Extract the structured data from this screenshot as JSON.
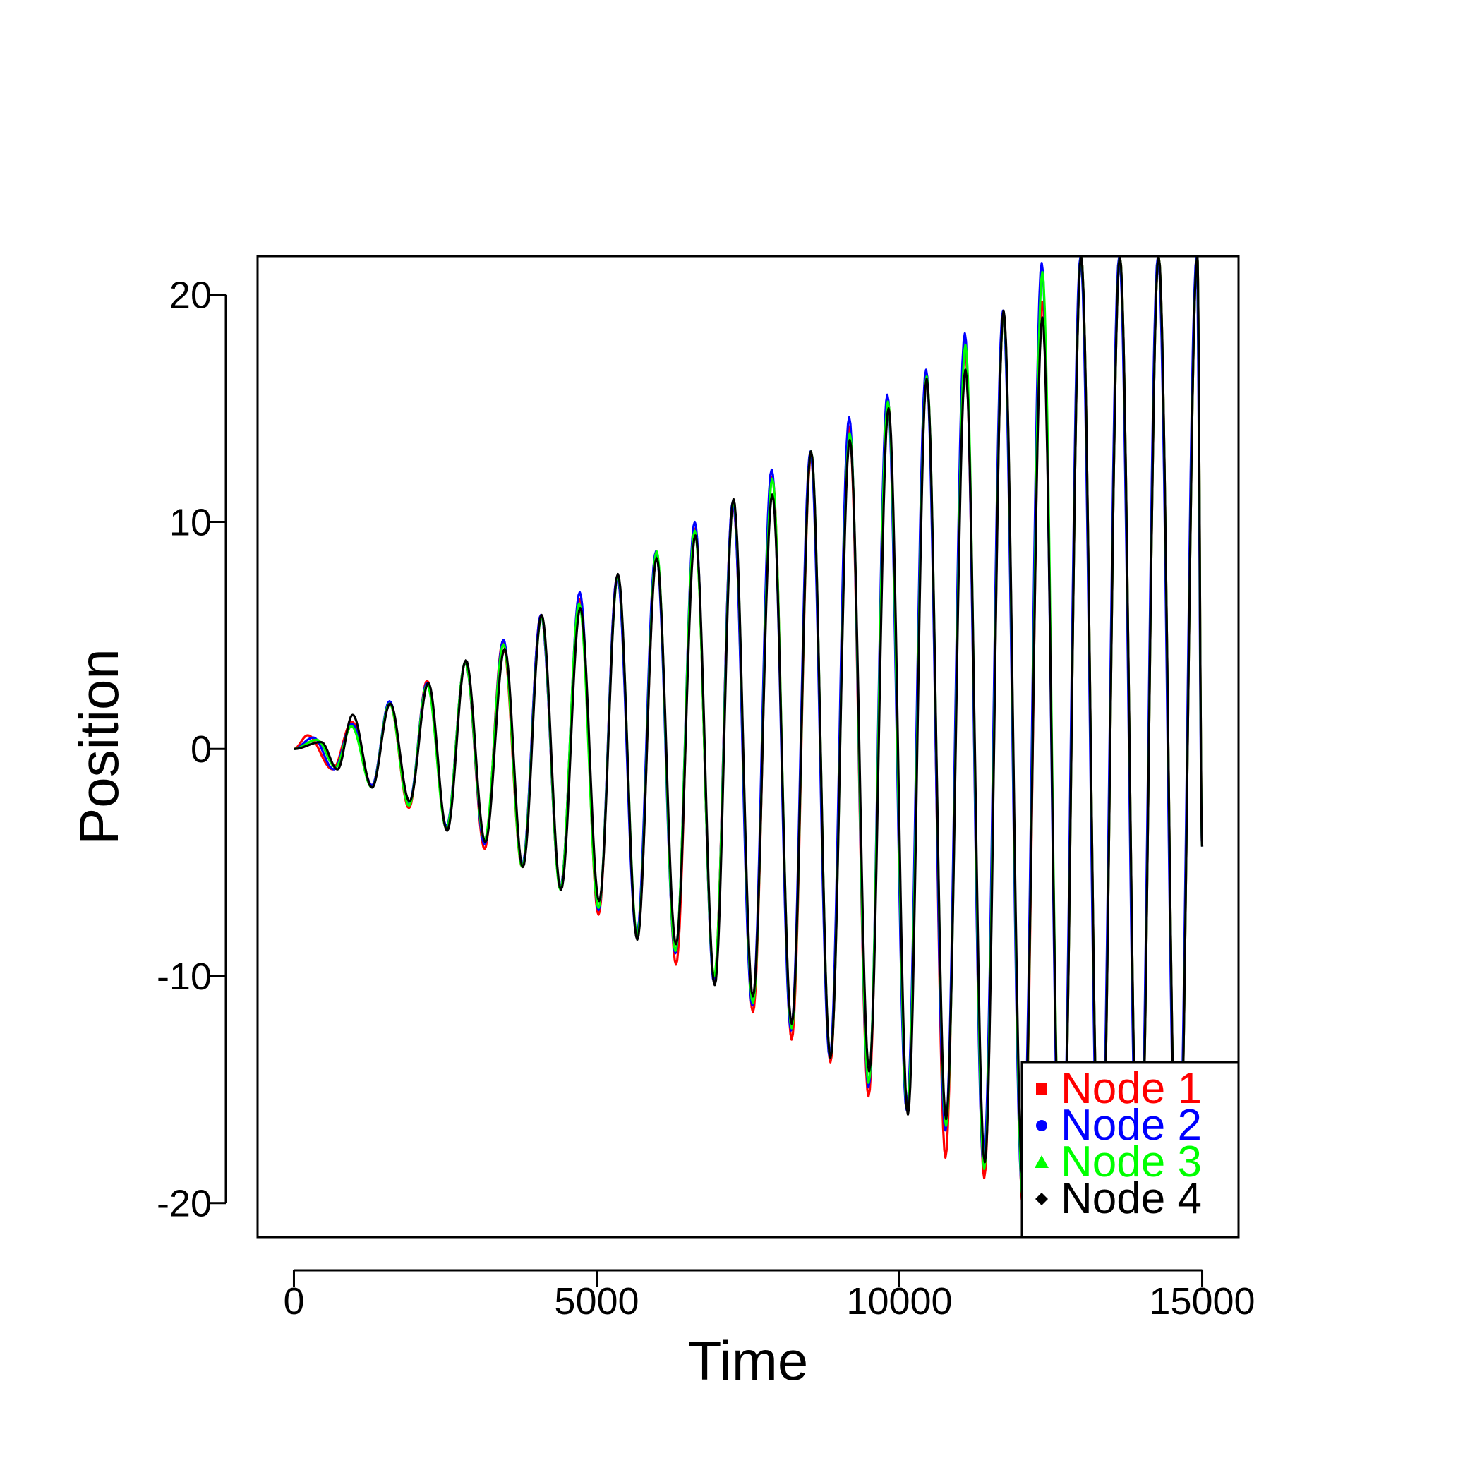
{
  "chart_data": {
    "type": "line",
    "xlabel": "Time",
    "ylabel": "Position",
    "xlim": [
      -600,
      15600
    ],
    "ylim": [
      -21.5,
      21.7
    ],
    "x_ticks": [
      0,
      5000,
      10000,
      15000
    ],
    "x_tick_labels": [
      "0",
      "5000",
      "10000",
      "15000"
    ],
    "y_ticks": [
      -20,
      -10,
      0,
      10,
      20
    ],
    "y_tick_labels": [
      "-20",
      "-10",
      "0",
      "10",
      "20"
    ],
    "grid": false,
    "legend_position": "bottom-right",
    "series": [
      {
        "name": "Node 1",
        "color": "#ff0000",
        "marker": "square",
        "extrema": [
          [
            0,
            0
          ],
          [
            230,
            0.6
          ],
          [
            640,
            -0.9
          ],
          [
            960,
            1.2
          ],
          [
            1290,
            -1.6
          ],
          [
            1580,
            2.0
          ],
          [
            1900,
            -2.6
          ],
          [
            2200,
            3.0
          ],
          [
            2520,
            -3.5
          ],
          [
            2830,
            3.8
          ],
          [
            3150,
            -4.4
          ],
          [
            3450,
            4.7
          ],
          [
            3770,
            -5.2
          ],
          [
            4080,
            5.9
          ],
          [
            4400,
            -6.1
          ],
          [
            4720,
            6.6
          ],
          [
            5030,
            -7.3
          ],
          [
            5340,
            7.6
          ],
          [
            5670,
            -8.3
          ],
          [
            5990,
            8.5
          ],
          [
            6310,
            -9.5
          ],
          [
            6620,
            9.7
          ],
          [
            6940,
            -10.1
          ],
          [
            7250,
            10.8
          ],
          [
            7580,
            -11.6
          ],
          [
            7900,
            12.0
          ],
          [
            8220,
            -12.8
          ],
          [
            8540,
            12.9
          ],
          [
            8860,
            -13.8
          ],
          [
            9170,
            14.2
          ],
          [
            9490,
            -15.3
          ],
          [
            9810,
            15.3
          ],
          [
            10130,
            -15.9
          ],
          [
            10450,
            16.4
          ],
          [
            10760,
            -18.0
          ],
          [
            11080,
            17.8
          ],
          [
            11400,
            -18.9
          ],
          [
            11720,
            19.2
          ],
          [
            12040,
            -20.2
          ],
          [
            12360,
            19.7
          ],
          [
            12680,
            -21.5
          ],
          [
            13000,
            21.7
          ],
          [
            13320,
            -21.5
          ],
          [
            13640,
            21.7
          ],
          [
            13960,
            -21.5
          ],
          [
            14280,
            21.7
          ],
          [
            14600,
            -21.5
          ],
          [
            14920,
            21.7
          ],
          [
            15000,
            -4.3
          ]
        ]
      },
      {
        "name": "Node 2",
        "color": "#0000ff",
        "marker": "circle",
        "extrema": [
          [
            0,
            0
          ],
          [
            320,
            0.5
          ],
          [
            660,
            -0.9
          ],
          [
            960,
            1.1
          ],
          [
            1290,
            -1.6
          ],
          [
            1580,
            2.1
          ],
          [
            1900,
            -2.4
          ],
          [
            2200,
            2.9
          ],
          [
            2520,
            -3.4
          ],
          [
            2830,
            3.8
          ],
          [
            3150,
            -4.2
          ],
          [
            3460,
            4.8
          ],
          [
            3770,
            -5.1
          ],
          [
            4080,
            5.9
          ],
          [
            4400,
            -6.1
          ],
          [
            4720,
            6.9
          ],
          [
            5030,
            -7.1
          ],
          [
            5340,
            7.6
          ],
          [
            5660,
            -8.2
          ],
          [
            5980,
            8.7
          ],
          [
            6300,
            -9.0
          ],
          [
            6620,
            10.0
          ],
          [
            6940,
            -10.3
          ],
          [
            7250,
            10.9
          ],
          [
            7570,
            -11.3
          ],
          [
            7890,
            12.3
          ],
          [
            8210,
            -12.4
          ],
          [
            8530,
            13.1
          ],
          [
            8850,
            -13.6
          ],
          [
            9170,
            14.6
          ],
          [
            9490,
            -14.9
          ],
          [
            9800,
            15.6
          ],
          [
            10120,
            -15.9
          ],
          [
            10440,
            16.7
          ],
          [
            10760,
            -16.8
          ],
          [
            11080,
            18.3
          ],
          [
            11390,
            -18.3
          ],
          [
            11710,
            19.3
          ],
          [
            12030,
            -19.6
          ],
          [
            12350,
            21.4
          ],
          [
            12670,
            -21.5
          ],
          [
            12990,
            21.7
          ],
          [
            13310,
            -21.5
          ],
          [
            13630,
            21.7
          ],
          [
            13950,
            -21.5
          ],
          [
            14270,
            21.7
          ],
          [
            14590,
            -21.5
          ],
          [
            14910,
            21.7
          ],
          [
            15000,
            -4.3
          ]
        ]
      },
      {
        "name": "Node 3",
        "color": "#00ff00",
        "marker": "triangle",
        "extrema": [
          [
            0,
            0
          ],
          [
            380,
            0.4
          ],
          [
            690,
            -0.8
          ],
          [
            950,
            1.0
          ],
          [
            1290,
            -1.7
          ],
          [
            1580,
            2.0
          ],
          [
            1900,
            -2.5
          ],
          [
            2200,
            2.8
          ],
          [
            2520,
            -3.5
          ],
          [
            2830,
            3.8
          ],
          [
            3150,
            -4.0
          ],
          [
            3460,
            4.6
          ],
          [
            3770,
            -5.2
          ],
          [
            4090,
            5.8
          ],
          [
            4400,
            -6.2
          ],
          [
            4710,
            6.4
          ],
          [
            5030,
            -7.0
          ],
          [
            5350,
            7.6
          ],
          [
            5670,
            -8.2
          ],
          [
            5990,
            8.7
          ],
          [
            6300,
            -8.9
          ],
          [
            6620,
            9.6
          ],
          [
            6940,
            -10.0
          ],
          [
            7260,
            10.9
          ],
          [
            7580,
            -11.2
          ],
          [
            7900,
            11.9
          ],
          [
            8220,
            -12.3
          ],
          [
            8540,
            13.1
          ],
          [
            8860,
            -13.6
          ],
          [
            9180,
            13.9
          ],
          [
            9490,
            -14.7
          ],
          [
            9810,
            15.3
          ],
          [
            10130,
            -15.9
          ],
          [
            10450,
            16.4
          ],
          [
            10770,
            -16.6
          ],
          [
            11090,
            17.8
          ],
          [
            11400,
            -18.5
          ],
          [
            11720,
            19.2
          ],
          [
            12040,
            -19.9
          ],
          [
            12360,
            21.0
          ],
          [
            12680,
            -21.5
          ],
          [
            13000,
            21.7
          ],
          [
            13320,
            -21.5
          ],
          [
            13640,
            21.7
          ],
          [
            13960,
            -21.5
          ],
          [
            14280,
            21.7
          ],
          [
            14600,
            -21.5
          ],
          [
            14920,
            21.7
          ],
          [
            15000,
            -4.3
          ]
        ]
      },
      {
        "name": "Node 4",
        "color": "#000000",
        "marker": "diamond",
        "extrema": [
          [
            0,
            0
          ],
          [
            450,
            0.3
          ],
          [
            720,
            -0.9
          ],
          [
            970,
            1.5
          ],
          [
            1290,
            -1.7
          ],
          [
            1590,
            2.0
          ],
          [
            1910,
            -2.3
          ],
          [
            2220,
            2.9
          ],
          [
            2530,
            -3.6
          ],
          [
            2840,
            3.9
          ],
          [
            3160,
            -4.1
          ],
          [
            3480,
            4.4
          ],
          [
            3780,
            -5.2
          ],
          [
            4090,
            5.9
          ],
          [
            4410,
            -6.2
          ],
          [
            4730,
            6.2
          ],
          [
            5040,
            -6.7
          ],
          [
            5350,
            7.7
          ],
          [
            5670,
            -8.4
          ],
          [
            5990,
            8.4
          ],
          [
            6310,
            -8.6
          ],
          [
            6630,
            9.4
          ],
          [
            6950,
            -10.4
          ],
          [
            7260,
            11.0
          ],
          [
            7580,
            -10.9
          ],
          [
            7900,
            11.2
          ],
          [
            8220,
            -12.1
          ],
          [
            8540,
            13.1
          ],
          [
            8860,
            -13.6
          ],
          [
            9180,
            13.6
          ],
          [
            9500,
            -14.2
          ],
          [
            9820,
            15.0
          ],
          [
            10140,
            -16.1
          ],
          [
            10450,
            16.3
          ],
          [
            10770,
            -16.3
          ],
          [
            11090,
            16.7
          ],
          [
            11410,
            -18.2
          ],
          [
            11720,
            19.3
          ],
          [
            12040,
            -19.0
          ],
          [
            12360,
            19.0
          ],
          [
            12680,
            -21.5
          ],
          [
            13000,
            21.7
          ],
          [
            13320,
            -21.5
          ],
          [
            13640,
            21.7
          ],
          [
            13960,
            -21.5
          ],
          [
            14280,
            21.7
          ],
          [
            14600,
            -21.5
          ],
          [
            14920,
            21.7
          ],
          [
            15000,
            -4.3
          ]
        ]
      }
    ]
  }
}
